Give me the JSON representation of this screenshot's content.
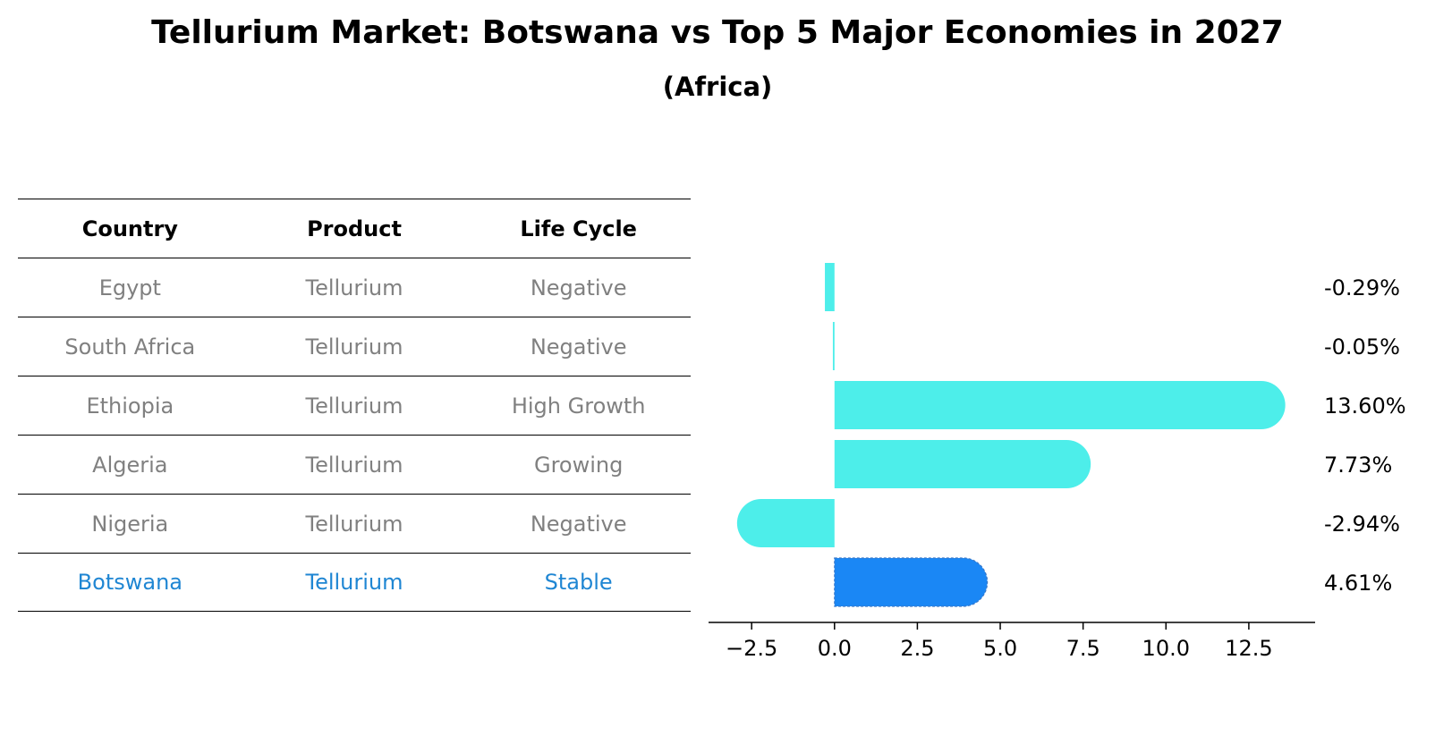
{
  "title": "Tellurium Market: Botswana vs Top 5 Major Economies in 2027",
  "subtitle": "(Africa)",
  "table": {
    "headers": [
      "Country",
      "Product",
      "Life Cycle"
    ],
    "rows": [
      {
        "country": "Egypt",
        "product": "Tellurium",
        "life_cycle": "Negative"
      },
      {
        "country": "South Africa",
        "product": "Tellurium",
        "life_cycle": "Negative"
      },
      {
        "country": "Ethiopia",
        "product": "Tellurium",
        "life_cycle": "High Growth"
      },
      {
        "country": "Algeria",
        "product": "Tellurium",
        "life_cycle": "Growing"
      },
      {
        "country": "Nigeria",
        "product": "Tellurium",
        "life_cycle": "Negative"
      },
      {
        "country": "Botswana",
        "product": "Tellurium",
        "life_cycle": "Stable"
      }
    ]
  },
  "chart_data": {
    "type": "bar",
    "orientation": "horizontal",
    "categories": [
      "Egypt",
      "South Africa",
      "Ethiopia",
      "Algeria",
      "Nigeria",
      "Botswana"
    ],
    "values": [
      -0.29,
      -0.05,
      13.6,
      7.73,
      -2.94,
      4.61
    ],
    "value_labels": [
      "-0.29%",
      "-0.05%",
      "13.60%",
      "7.73%",
      "-2.94%",
      "4.61%"
    ],
    "highlight": "Botswana",
    "xlim": [
      -3.8,
      14.5
    ],
    "xticks": [
      -2.5,
      0.0,
      2.5,
      5.0,
      7.5,
      10.0,
      12.5
    ],
    "xtick_labels": [
      "−2.5",
      "0.0",
      "2.5",
      "5.0",
      "7.5",
      "10.0",
      "12.5"
    ],
    "colors": {
      "default": "#4deeea",
      "highlight": "#1a87f5",
      "highlight_text": "#1f86d3"
    }
  }
}
